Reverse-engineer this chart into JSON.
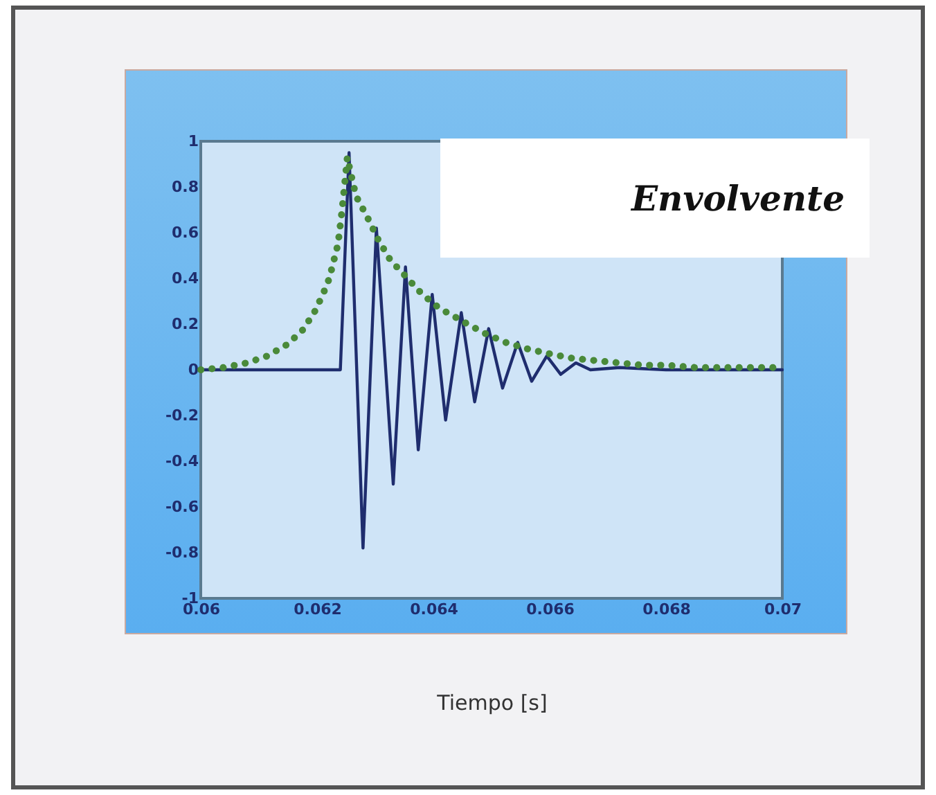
{
  "chart_data": {
    "type": "line",
    "xlabel": "Tiempo [s]",
    "annotations": [
      "Envolvente"
    ],
    "xlim": [
      0.06,
      0.07
    ],
    "xticks": [
      0.06,
      0.062,
      0.064,
      0.066,
      0.068,
      0.07
    ],
    "ylim": [
      -1,
      1
    ],
    "yticks": [
      -1,
      -0.8,
      -0.6,
      -0.4,
      -0.2,
      0,
      0.2,
      0.4,
      0.6,
      0.8,
      1
    ],
    "grid": false,
    "series": [
      {
        "color": "#1f2d6e",
        "line_style": "solid",
        "x": [
          0.06,
          0.0624,
          0.06255,
          0.06279,
          0.06302,
          0.06331,
          0.06352,
          0.06374,
          0.06398,
          0.06421,
          0.06448,
          0.06471,
          0.06495,
          0.06519,
          0.06545,
          0.06569,
          0.06595,
          0.06619,
          0.06645,
          0.0667,
          0.0672,
          0.068,
          0.069,
          0.07
        ],
        "values": [
          0,
          0,
          0.95,
          -0.78,
          0.62,
          -0.5,
          0.45,
          -0.35,
          0.33,
          -0.22,
          0.25,
          -0.14,
          0.18,
          -0.08,
          0.12,
          -0.05,
          0.06,
          -0.02,
          0.03,
          0,
          0.01,
          0,
          0,
          0
        ]
      },
      {
        "color": "#4a8a3a",
        "line_style": "dotted",
        "x": [
          0.06,
          0.0604,
          0.06079,
          0.06114,
          0.06148,
          0.06174,
          0.06195,
          0.0621,
          0.06221,
          0.06236,
          0.06243,
          0.06252,
          0.06257,
          0.06267,
          0.06286,
          0.06305,
          0.06326,
          0.06352,
          0.06381,
          0.0641,
          0.06452,
          0.06488,
          0.06524,
          0.06564,
          0.066,
          0.0664,
          0.0668,
          0.0672,
          0.0676,
          0.068,
          0.0685,
          0.069,
          0.0695,
          0.07
        ],
        "values": [
          0,
          0.01,
          0.03,
          0.06,
          0.11,
          0.17,
          0.25,
          0.33,
          0.4,
          0.55,
          0.7,
          0.93,
          0.87,
          0.76,
          0.67,
          0.57,
          0.48,
          0.41,
          0.33,
          0.27,
          0.21,
          0.16,
          0.12,
          0.09,
          0.07,
          0.05,
          0.04,
          0.03,
          0.02,
          0.02,
          0.01,
          0.01,
          0.01,
          0.01
        ]
      }
    ]
  }
}
